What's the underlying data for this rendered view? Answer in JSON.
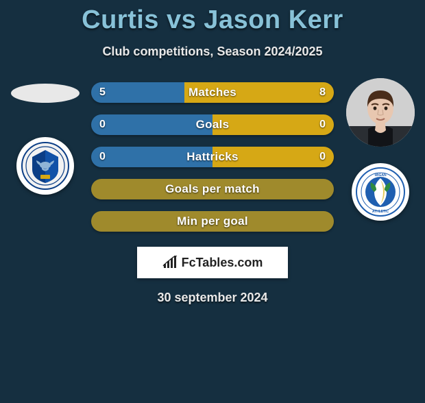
{
  "title": "Curtis vs Jason Kerr",
  "subtitle": "Club competitions, Season 2024/2025",
  "date": "30 september 2024",
  "watermark": {
    "text": "FcTables.com"
  },
  "colors": {
    "background": "#152f40",
    "title": "#88c2d8",
    "text": "#e8e8e8",
    "bar_left": "#2f71a8",
    "bar_right": "#d6a815",
    "bar_neutral": "#9f8a2c"
  },
  "left": {
    "club_primary": "#0b3e86",
    "club_accent": "#8fb4d6"
  },
  "right": {
    "club_primary": "#1f5fb0",
    "club_accent": "#ffffff",
    "face_skin": "#e8c7b0",
    "face_hair": "#4a2d1a"
  },
  "bars": [
    {
      "label": "Matches",
      "left": "5",
      "right": "8",
      "left_frac": 0.385,
      "right_frac": 0.615,
      "show_values": true,
      "neutral": false
    },
    {
      "label": "Goals",
      "left": "0",
      "right": "0",
      "left_frac": 0.5,
      "right_frac": 0.5,
      "show_values": true,
      "neutral": false
    },
    {
      "label": "Hattricks",
      "left": "0",
      "right": "0",
      "left_frac": 0.5,
      "right_frac": 0.5,
      "show_values": true,
      "neutral": false
    },
    {
      "label": "Goals per match",
      "left": "",
      "right": "",
      "left_frac": 1.0,
      "right_frac": 0.0,
      "show_values": false,
      "neutral": true
    },
    {
      "label": "Min per goal",
      "left": "",
      "right": "",
      "left_frac": 1.0,
      "right_frac": 0.0,
      "show_values": false,
      "neutral": true
    }
  ]
}
